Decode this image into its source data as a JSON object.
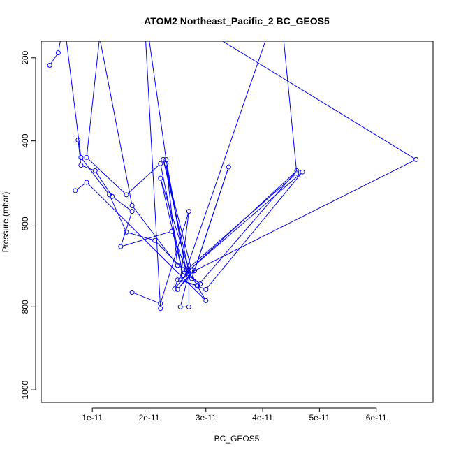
{
  "chart_data": {
    "type": "line",
    "title": "ATOM2 Northeast_Pacific_2 BC_GEOS5",
    "xlabel": "BC_GEOS5",
    "ylabel": "Pressure (mbar)",
    "xlim": [
      1e-12,
      7e-11
    ],
    "ylim": [
      1030,
      160
    ],
    "y_inverted": true,
    "x_ticks": [
      1e-11,
      2e-11,
      3e-11,
      4e-11,
      5e-11,
      6e-11
    ],
    "x_tick_labels": [
      "1e-11",
      "2e-11",
      "3e-11",
      "4e-11",
      "5e-11",
      "6e-11"
    ],
    "y_ticks": [
      200,
      400,
      600,
      800,
      1000
    ],
    "y_tick_labels": [
      "200",
      "400",
      "600",
      "800",
      "1000"
    ],
    "series_color": "#0000ff",
    "series": [
      {
        "x": [
          2.5e-12,
          4e-12,
          5e-12,
          8e-12,
          1.3e-11,
          1.6e-11,
          2.1e-11,
          2.6e-11,
          2.9e-11,
          2.7e-11,
          2.5e-11,
          2.8e-11,
          3.4e-11,
          2.75e-11,
          2.2e-11,
          2.6e-11,
          4.6e-11,
          2.85e-11,
          3e-11,
          9e-12,
          7e-12
        ],
        "y": [
          218,
          188,
          110,
          440,
          530,
          620,
          640,
          710,
          745,
          725,
          758,
          713,
          463,
          732,
          490,
          725,
          472,
          750,
          785,
          500,
          520
        ]
      },
      {
        "x": [
          1.2e-11,
          9e-12,
          1.6e-11,
          2.2e-11,
          2.6e-11,
          2.75e-11,
          2.25e-11,
          2.7e-11,
          4.7e-11,
          3e-11,
          2.85e-11,
          2.55e-11,
          2.7e-11,
          2.2e-11,
          1.7e-11
        ],
        "y": [
          60,
          440,
          530,
          455,
          725,
          712,
          445,
          712,
          475,
          758,
          750,
          735,
          570,
          792,
          765
        ]
      },
      {
        "x": [
          7.5e-12,
          8e-12,
          1.05e-11,
          1.35e-11,
          1.7e-11,
          1.5e-11,
          2.4e-11,
          2.65e-11,
          2.85e-11,
          2.5e-11,
          2.45e-11,
          2.7e-11,
          2.7e-11,
          2.55e-11,
          2.7e-11,
          6.7e-11,
          2.1e-11
        ],
        "y": [
          398,
          459,
          472,
          534,
          570,
          655,
          618,
          710,
          748,
          735,
          757,
          713,
          800,
          800,
          720,
          445,
          60
        ]
      },
      {
        "x": [
          1e-11,
          1.7e-11,
          2.5e-11,
          2.3e-11,
          2.65e-11,
          4.6e-11,
          4.3e-11,
          2.65e-11,
          2.3e-11,
          1.9e-11,
          2.2e-11
        ],
        "y": [
          60,
          556,
          700,
          455,
          712,
          478,
          60,
          712,
          445,
          60,
          804
        ]
      }
    ]
  }
}
